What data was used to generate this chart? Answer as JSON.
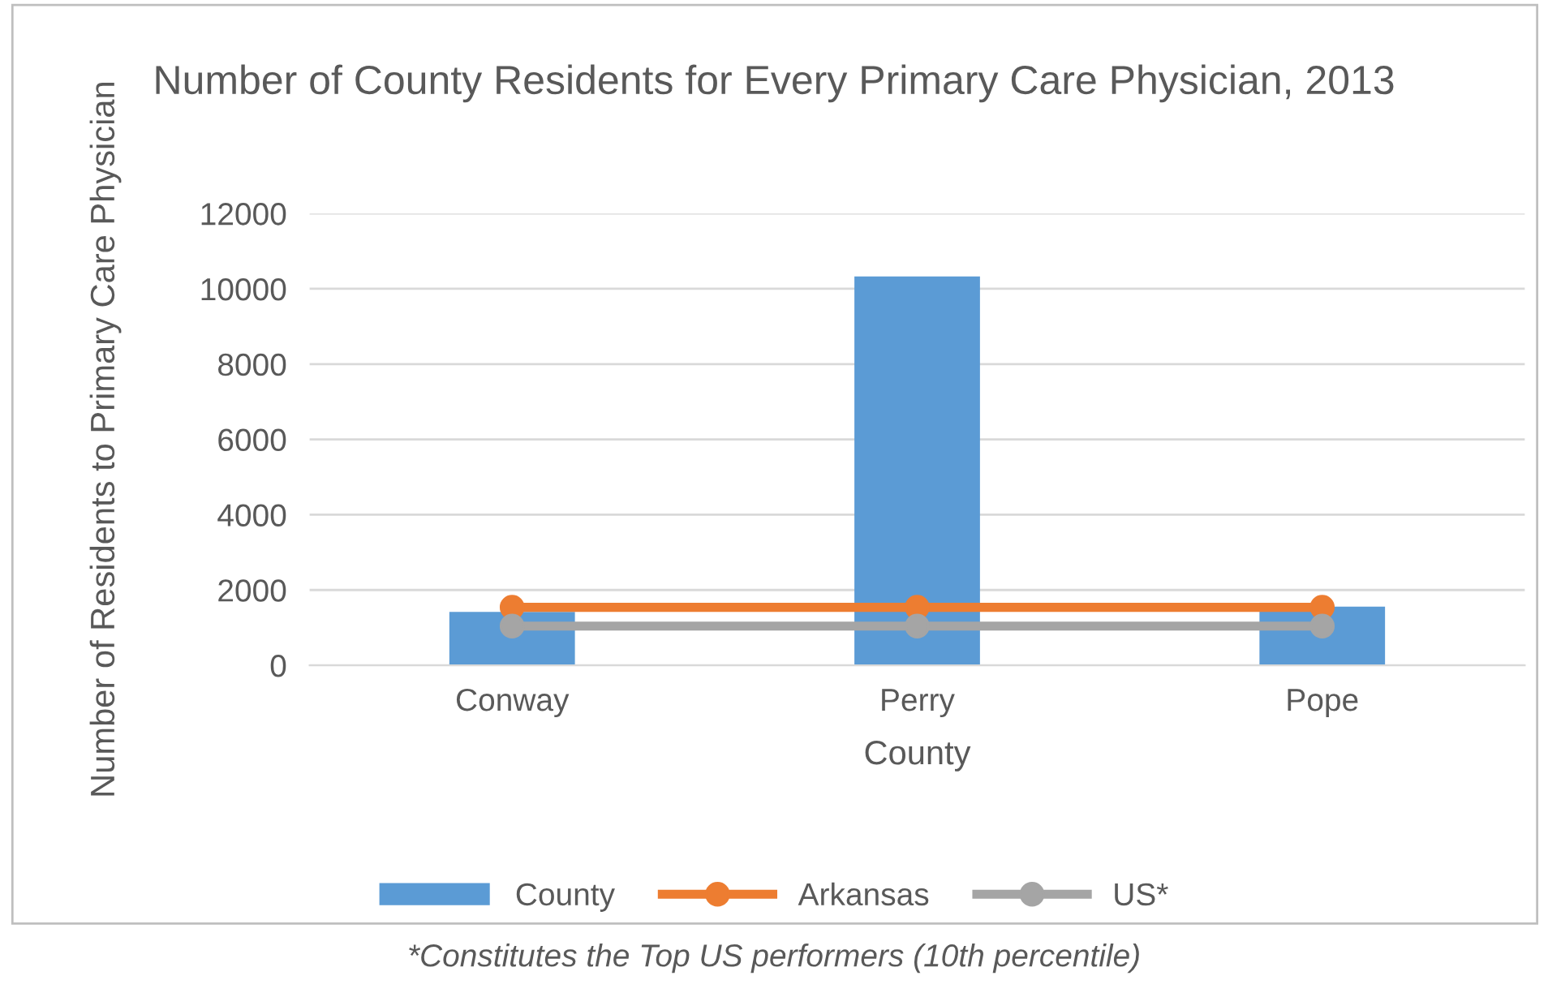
{
  "chart_data": {
    "type": "bar",
    "title": "Number of County Residents for Every Primary Care Physician, 2013",
    "xlabel": "County",
    "ylabel": "Number of Residents to Primary Care Physician",
    "categories": [
      "Conway",
      "Perry",
      "Pope"
    ],
    "series": [
      {
        "name": "County",
        "color": "#5b9bd5",
        "values": [
          1420,
          10330,
          1560
        ]
      },
      {
        "name": "Arkansas",
        "type": "line",
        "color": "#ed7d31",
        "marker": "circle",
        "values": [
          1540,
          1540,
          1540
        ]
      },
      {
        "name": "US*",
        "type": "line",
        "color": "#a5a5a5",
        "marker": "circle",
        "values": [
          1040,
          1040,
          1040
        ]
      }
    ],
    "ylim": [
      0,
      12000
    ],
    "yticks": [
      0,
      2000,
      4000,
      6000,
      8000,
      10000,
      12000
    ],
    "grid": "y",
    "legend": "bottom",
    "annotations": [
      "*Constitutes the Top US performers (10th percentile)"
    ]
  }
}
